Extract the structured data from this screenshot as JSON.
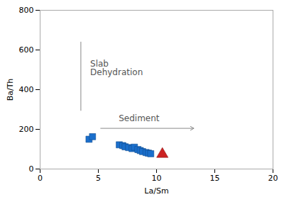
{
  "chart_data": {
    "type": "scatter",
    "xlabel": "La/Sm",
    "ylabel": "Ba/Th",
    "xlim": [
      0,
      20
    ],
    "ylim": [
      0,
      800
    ],
    "xticks": [
      0,
      5,
      10,
      15,
      20
    ],
    "yticks": [
      0,
      200,
      400,
      600,
      800
    ],
    "grid": false,
    "series": [
      {
        "color": "#1a6fcc",
        "marker": "square",
        "x": [
          4.2,
          4.5,
          6.8,
          7.1,
          7.3,
          7.6,
          7.9,
          8.1,
          8.4,
          8.6,
          8.8,
          9.1,
          9.3,
          9.5
        ],
        "values": [
          150,
          163,
          122,
          118,
          112,
          108,
          103,
          110,
          98,
          93,
          88,
          83,
          80,
          77
        ]
      },
      {
        "color": "#cc2222",
        "marker": "triangle",
        "x": [
          10.5
        ],
        "values": [
          75
        ]
      }
    ],
    "annotations": [
      {
        "type": "line",
        "color": "#888888",
        "x": [
          3.5,
          3.5
        ],
        "y": [
          295,
          640
        ]
      },
      {
        "type": "text",
        "color": "#555555",
        "text": "Slab\nDehydration",
        "x": 4.3,
        "y": 510
      },
      {
        "type": "arrow",
        "color": "#888888",
        "x": [
          5.2,
          13.2
        ],
        "y": [
          205,
          205
        ]
      },
      {
        "type": "text",
        "color": "#555555",
        "text": "Sediment",
        "x": 8.5,
        "y": 240
      }
    ]
  }
}
